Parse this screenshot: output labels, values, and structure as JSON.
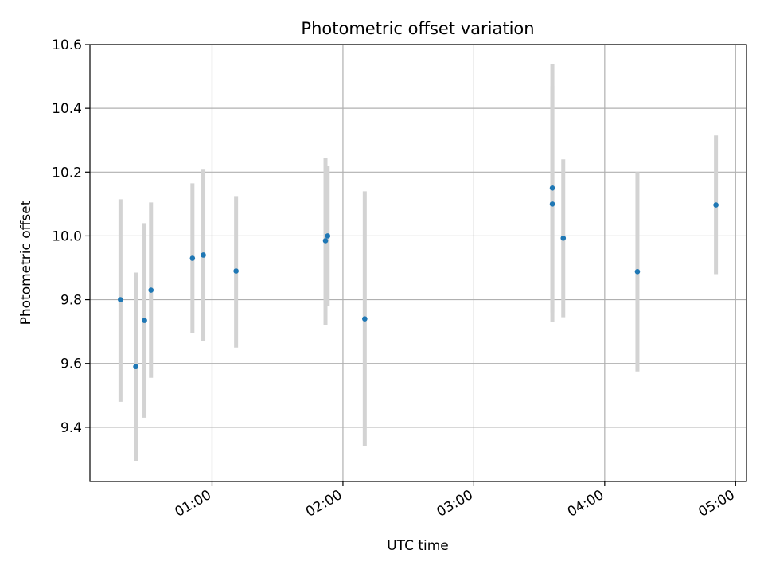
{
  "chart_data": {
    "type": "scatter",
    "title": "Photometric offset variation",
    "xlabel": "UTC time",
    "ylabel": "Photometric offset",
    "grid": true,
    "legend": "none",
    "x_ticks": [
      "01:00",
      "02:00",
      "03:00",
      "04:00",
      "05:00"
    ],
    "x_tick_minutes": [
      60,
      120,
      180,
      240,
      300
    ],
    "xlim_minutes": [
      4,
      305
    ],
    "y_ticks": [
      "9.4",
      "9.6",
      "9.8",
      "10.0",
      "10.2",
      "10.4",
      "10.6"
    ],
    "y_tick_values": [
      9.4,
      9.6,
      9.8,
      10.0,
      10.2,
      10.4,
      10.6
    ],
    "ylim": [
      9.23,
      10.6
    ],
    "colors": {
      "point": "#1f77b4",
      "errorbar": "#d3d3d3",
      "grid": "#b0b0b0"
    },
    "series": [
      {
        "points": [
          {
            "time": "00:18",
            "y": 9.8,
            "err_low": 9.48,
            "err_high": 10.115
          },
          {
            "time": "00:25",
            "y": 9.59,
            "err_low": 9.295,
            "err_high": 9.885
          },
          {
            "time": "00:29",
            "y": 9.735,
            "err_low": 9.43,
            "err_high": 10.04
          },
          {
            "time": "00:32",
            "y": 9.83,
            "err_low": 9.555,
            "err_high": 10.105
          },
          {
            "time": "00:51",
            "y": 9.93,
            "err_low": 9.695,
            "err_high": 10.165
          },
          {
            "time": "00:56",
            "y": 9.94,
            "err_low": 9.67,
            "err_high": 10.21
          },
          {
            "time": "01:11",
            "y": 9.89,
            "err_low": 9.65,
            "err_high": 10.125
          },
          {
            "time": "01:52",
            "y": 9.985,
            "err_low": 9.72,
            "err_high": 10.245
          },
          {
            "time": "01:53",
            "y": 10.0,
            "err_low": 9.78,
            "err_high": 10.22
          },
          {
            "time": "02:10",
            "y": 9.74,
            "err_low": 9.34,
            "err_high": 10.14
          },
          {
            "time": "03:36",
            "y": 10.15,
            "err_low": 9.76,
            "err_high": 10.54
          },
          {
            "time": "03:36",
            "y": 10.1,
            "err_low": 9.73,
            "err_high": 10.47
          },
          {
            "time": "03:41",
            "y": 9.993,
            "err_low": 9.745,
            "err_high": 10.24
          },
          {
            "time": "04:15",
            "y": 9.888,
            "err_low": 9.575,
            "err_high": 10.2
          },
          {
            "time": "04:51",
            "y": 10.097,
            "err_low": 9.88,
            "err_high": 10.315
          }
        ]
      }
    ]
  }
}
